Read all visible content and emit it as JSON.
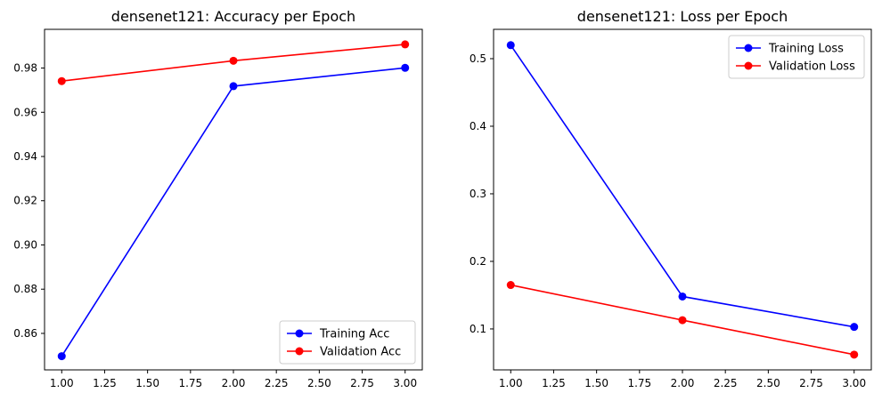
{
  "chart_data": [
    {
      "type": "line",
      "title": "densenet121: Accuracy per Epoch",
      "xlabel": "",
      "ylabel": "",
      "x": [
        1.0,
        2.0,
        3.0
      ],
      "xlim": [
        0.9,
        3.1
      ],
      "ylim": [
        0.8435,
        0.9975
      ],
      "xticks": [
        1.0,
        1.25,
        1.5,
        1.75,
        2.0,
        2.25,
        2.5,
        2.75,
        3.0
      ],
      "xtick_labels": [
        "1.00",
        "1.25",
        "1.50",
        "1.75",
        "2.00",
        "2.25",
        "2.50",
        "2.75",
        "3.00"
      ],
      "yticks": [
        0.86,
        0.88,
        0.9,
        0.92,
        0.94,
        0.96,
        0.98
      ],
      "ytick_labels": [
        "0.86",
        "0.88",
        "0.90",
        "0.92",
        "0.94",
        "0.96",
        "0.98"
      ],
      "grid": false,
      "legend_position": "lower-right",
      "series": [
        {
          "name": "Training Acc",
          "color": "#0000ff",
          "values": [
            0.8497,
            0.9718,
            0.9801
          ]
        },
        {
          "name": "Validation Acc",
          "color": "#ff0000",
          "values": [
            0.9741,
            0.9833,
            0.9907
          ]
        }
      ]
    },
    {
      "type": "line",
      "title": "densenet121: Loss per Epoch",
      "xlabel": "",
      "ylabel": "",
      "x": [
        1.0,
        2.0,
        3.0
      ],
      "xlim": [
        0.9,
        3.1
      ],
      "ylim": [
        0.0394,
        0.5434
      ],
      "xticks": [
        1.0,
        1.25,
        1.5,
        1.75,
        2.0,
        2.25,
        2.5,
        2.75,
        3.0
      ],
      "xtick_labels": [
        "1.00",
        "1.25",
        "1.50",
        "1.75",
        "2.00",
        "2.25",
        "2.50",
        "2.75",
        "3.00"
      ],
      "yticks": [
        0.1,
        0.2,
        0.3,
        0.4,
        0.5
      ],
      "ytick_labels": [
        "0.1",
        "0.2",
        "0.3",
        "0.4",
        "0.5"
      ],
      "grid": false,
      "legend_position": "upper-right",
      "series": [
        {
          "name": "Training Loss",
          "color": "#0000ff",
          "values": [
            0.52,
            0.148,
            0.103
          ]
        },
        {
          "name": "Validation Loss",
          "color": "#ff0000",
          "values": [
            0.165,
            0.113,
            0.062
          ]
        }
      ]
    }
  ]
}
